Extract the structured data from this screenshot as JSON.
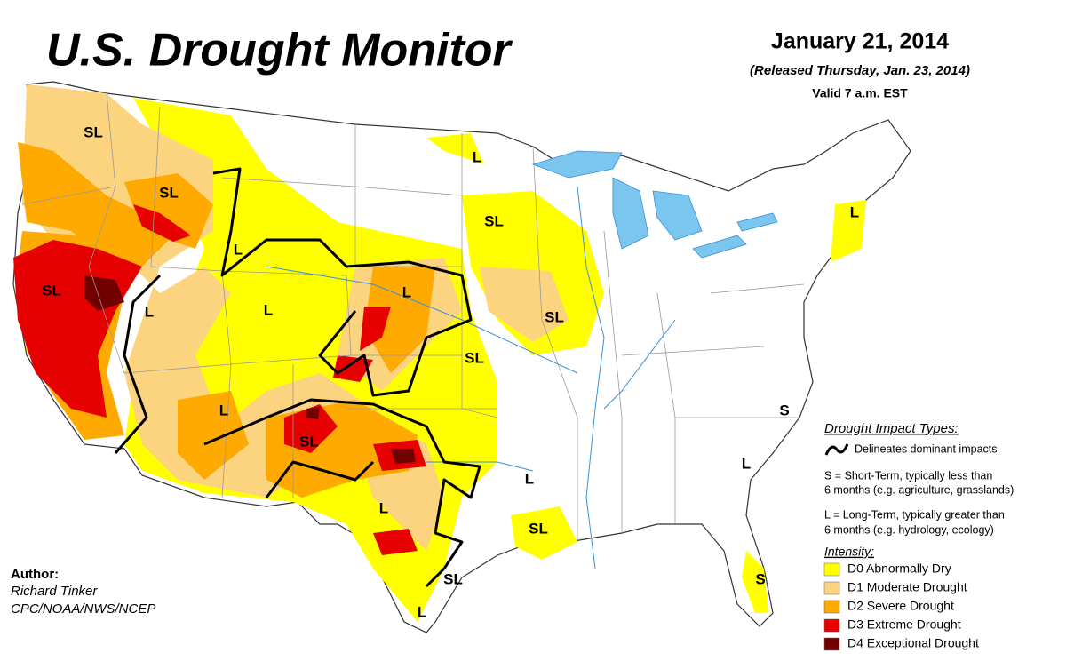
{
  "header": {
    "title": "U.S. Drought Monitor",
    "date": "January 21, 2014",
    "released": "(Released Thursday, Jan. 23, 2014)",
    "valid": "Valid 7 a.m. EST"
  },
  "author": {
    "heading": "Author:",
    "name": "Richard Tinker",
    "org": "CPC/NOAA/NWS/NCEP"
  },
  "legend": {
    "impact_heading": "Drought Impact Types:",
    "delineates": "Delineates dominant impacts",
    "short_term": [
      "S = Short-Term, typically less than",
      "6 months (e.g. agriculture, grasslands)"
    ],
    "long_term": [
      "L = Long-Term, typically greater than",
      "6 months (e.g. hydrology, ecology)"
    ],
    "intensity_heading": "Intensity:",
    "intensity": [
      {
        "label": "D0 Abnormally Dry",
        "color": "#ffff00"
      },
      {
        "label": "D1 Moderate Drought",
        "color": "#fcd37f"
      },
      {
        "label": "D2 Severe Drought",
        "color": "#ffaa00"
      },
      {
        "label": "D3 Extreme Drought",
        "color": "#e60000"
      },
      {
        "label": "D4 Exceptional Drought",
        "color": "#730000"
      }
    ]
  },
  "map_labels": [
    "SL",
    "SL",
    "L",
    "L",
    "SL",
    "L",
    "SL",
    "L",
    "L",
    "L",
    "SL",
    "SL",
    "S",
    "L",
    "SL",
    "L",
    "L",
    "L",
    "SL",
    "S",
    "SL",
    "L"
  ]
}
